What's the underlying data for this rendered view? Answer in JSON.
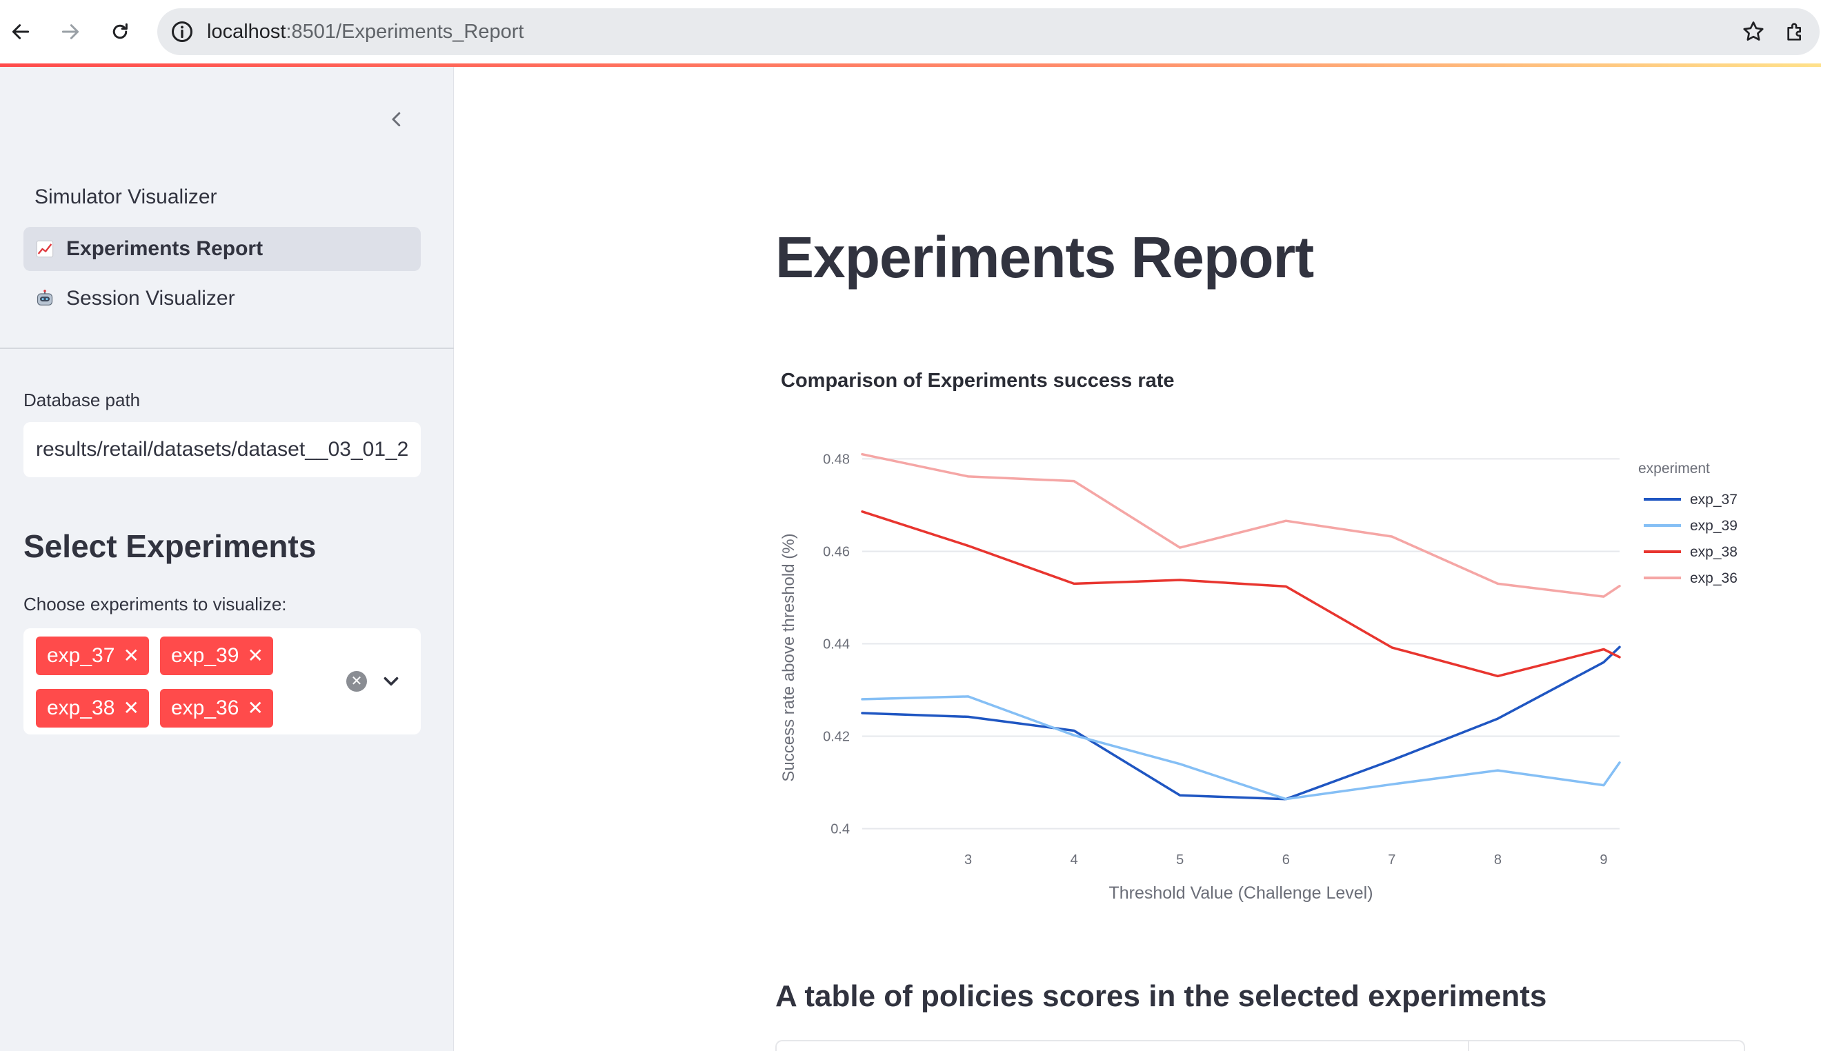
{
  "browser": {
    "url_host": "localhost",
    "url_path": ":8501/Experiments_Report"
  },
  "sidebar": {
    "nav_header": "Simulator Visualizer",
    "nav_items": [
      {
        "icon": "chart-increasing-icon",
        "label": "Experiments Report",
        "active": true
      },
      {
        "icon": "robot-icon",
        "label": "Session Visualizer",
        "active": false
      }
    ],
    "db_path_label": "Database path",
    "db_path_value": "results/retail/datasets/dataset__03_01_2",
    "select_heading": "Select Experiments",
    "choose_label": "Choose experiments to visualize:",
    "selected_tags": [
      "exp_37",
      "exp_39",
      "exp_38",
      "exp_36"
    ],
    "tag_color": "#ff4b4b"
  },
  "main": {
    "title": "Experiments Report",
    "table_heading": "A table of policies scores in the selected experiments"
  },
  "chart_data": {
    "type": "line",
    "title": "Comparison of Experiments success rate",
    "xlabel": "Threshold Value (Challenge Level)",
    "ylabel": "Success rate above threshold (%)",
    "legend_title": "experiment",
    "legend_position": "right",
    "xlim": [
      2,
      9.15
    ],
    "ylim": [
      0.398,
      0.482
    ],
    "x_ticks": [
      3,
      4,
      5,
      6,
      7,
      8,
      9
    ],
    "y_ticks": [
      0.4,
      0.42,
      0.44,
      0.46,
      0.48
    ],
    "y_tick_labels": [
      "0.4",
      "0.42",
      "0.44",
      "0.46",
      "0.48"
    ],
    "grid": true,
    "x": [
      2,
      3,
      4,
      5,
      6,
      7,
      8,
      9,
      9.15
    ],
    "series": [
      {
        "name": "exp_37",
        "color": "#1f56c2",
        "values": [
          0.425,
          0.4242,
          0.4212,
          0.4072,
          0.4064,
          0.4148,
          0.4238,
          0.436,
          0.4393
        ]
      },
      {
        "name": "exp_39",
        "color": "#85bff5",
        "values": [
          0.428,
          0.4286,
          0.4202,
          0.414,
          0.4064,
          0.4096,
          0.4126,
          0.4094,
          0.4143
        ]
      },
      {
        "name": "exp_38",
        "color": "#e8352f",
        "values": [
          0.4686,
          0.4612,
          0.453,
          0.4538,
          0.4524,
          0.4392,
          0.433,
          0.4388,
          0.4371
        ]
      },
      {
        "name": "exp_36",
        "color": "#f5a6a5",
        "values": [
          0.481,
          0.4762,
          0.4752,
          0.4608,
          0.4666,
          0.4632,
          0.453,
          0.4502,
          0.4525
        ]
      }
    ]
  }
}
